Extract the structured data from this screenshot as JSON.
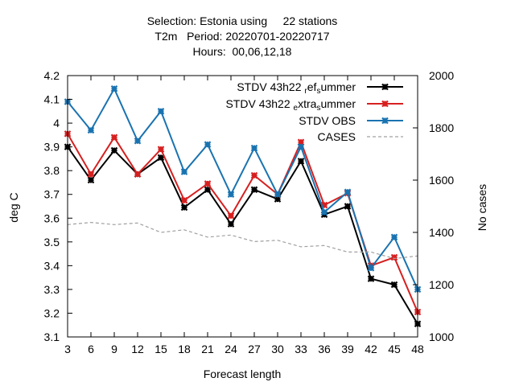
{
  "chart_data": {
    "type": "line",
    "title_lines": [
      "Selection: Estonia using     22 stations",
      "T2m   Period: 20220701-20220717",
      "Hours:  00,06,12,18"
    ],
    "xlabel": "Forecast length",
    "ylabel": "deg C",
    "y2label": "No cases",
    "x": [
      3,
      6,
      9,
      12,
      15,
      18,
      21,
      24,
      27,
      30,
      33,
      36,
      39,
      42,
      45,
      48
    ],
    "x_ticks": [
      "3",
      "6",
      "9",
      "12",
      "15",
      "18",
      "21",
      "24",
      "27",
      "30",
      "33",
      "36",
      "39",
      "42",
      "45",
      "48"
    ],
    "xlim": [
      3,
      48
    ],
    "ylim": [
      3.1,
      4.2
    ],
    "y_ticks": [
      "3.1",
      "3.2",
      "3.3",
      "3.4",
      "3.5",
      "3.6",
      "3.7",
      "3.8",
      "3.9",
      "4",
      "4.1",
      "4.2"
    ],
    "y2lim": [
      1000,
      2000
    ],
    "y2_ticks": [
      "1000",
      "1200",
      "1400",
      "1600",
      "1800",
      "2000"
    ],
    "legend_position": "top-right",
    "grid": false,
    "series": [
      {
        "name": "STDV 43h22",
        "sub_a": "r",
        "mid": "ef",
        "sub_b": "s",
        "tail": "ummer",
        "color": "#000000",
        "style": "solid-marker",
        "axis": "y",
        "values": [
          3.9,
          3.76,
          3.885,
          3.785,
          3.855,
          3.645,
          3.72,
          3.575,
          3.72,
          3.68,
          3.84,
          3.615,
          3.65,
          3.345,
          3.32,
          3.155
        ]
      },
      {
        "name": "STDV 43h22",
        "sub_a": "e",
        "mid": "xtra",
        "sub_b": "s",
        "tail": "ummer",
        "color": "#d62020",
        "style": "solid-marker",
        "axis": "y",
        "values": [
          3.955,
          3.785,
          3.94,
          3.785,
          3.89,
          3.675,
          3.745,
          3.61,
          3.78,
          3.7,
          3.92,
          3.655,
          3.705,
          3.4,
          3.435,
          3.205
        ]
      },
      {
        "name": "STDV OBS",
        "color": "#1a73b0",
        "style": "solid-marker",
        "axis": "y",
        "values": [
          4.09,
          3.97,
          4.145,
          3.925,
          4.05,
          3.795,
          3.91,
          3.7,
          3.895,
          3.7,
          3.9,
          3.625,
          3.71,
          3.39,
          3.52,
          3.3
        ]
      },
      {
        "name": "CASES",
        "color": "#a0a0a0",
        "style": "dashed",
        "axis": "y2",
        "values": [
          1430,
          1438,
          1430,
          1436,
          1400,
          1410,
          1382,
          1390,
          1365,
          1370,
          1345,
          1350,
          1325,
          1325,
          1300,
          1310
        ]
      }
    ]
  }
}
